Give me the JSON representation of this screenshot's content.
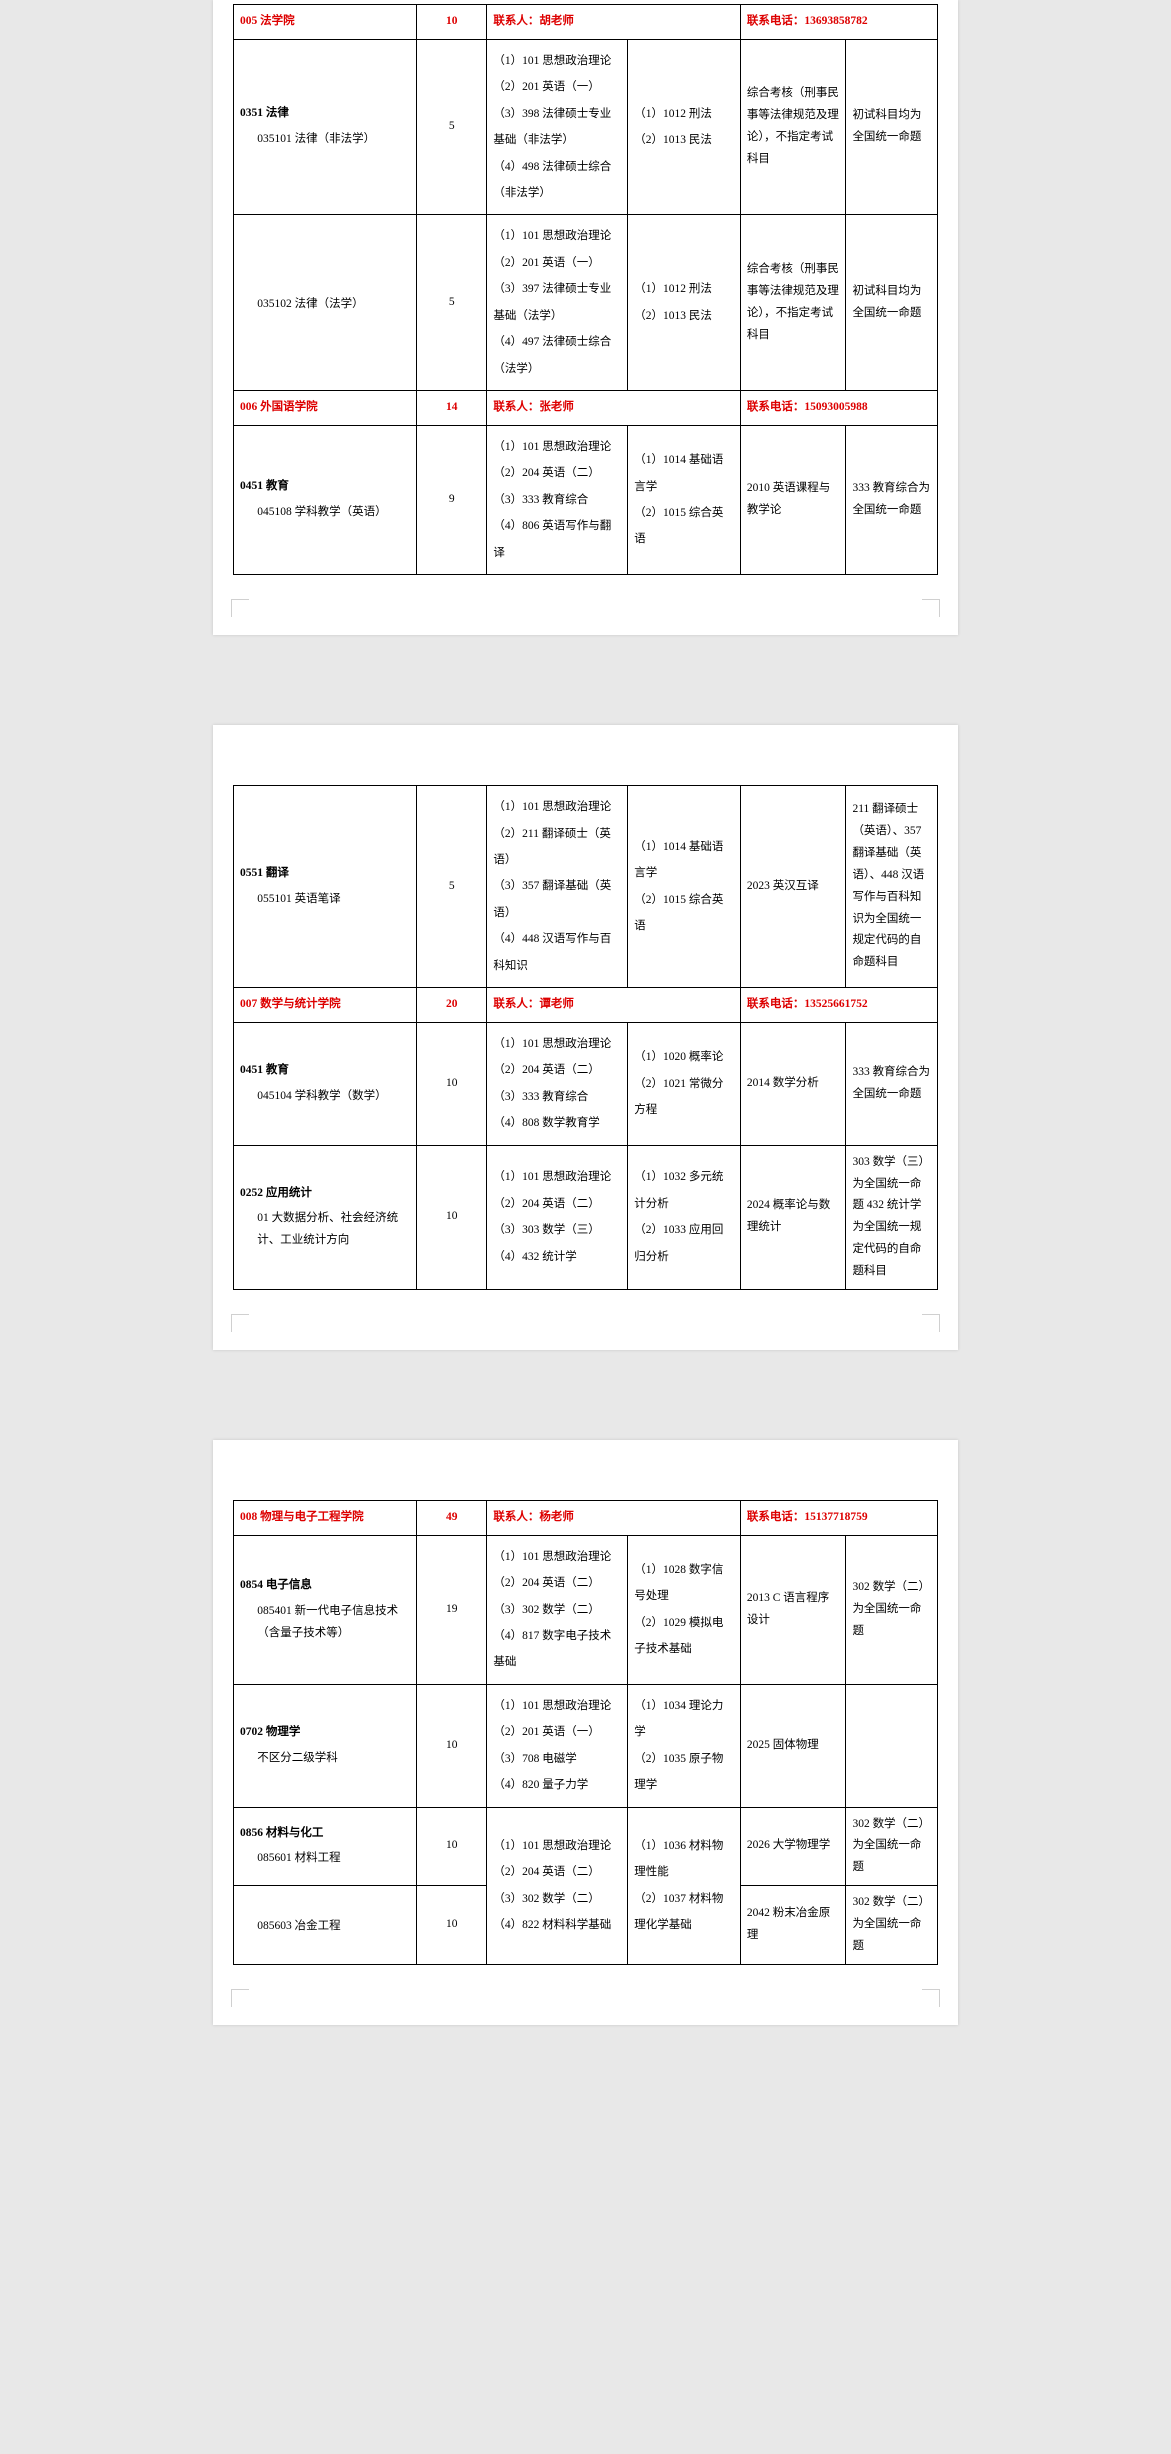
{
  "colWidths": [
    "26%",
    "10%",
    "20%",
    "16%",
    "15%",
    "13%"
  ],
  "deptLabels": {
    "contact": "联系人：",
    "phone": "联系电话："
  },
  "pages": [
    {
      "first": true,
      "rows": [
        {
          "type": "dept",
          "name": "005 法学院",
          "num": "10",
          "contact": "胡老师",
          "phone": "13693858782"
        },
        {
          "type": "data",
          "major": "<span class='maj-code'>0351  法律</span><span class='sub-line'>035101 法律（非法学）</span>",
          "num": "5",
          "c3": "（1）101 思想政治理论\n（2）201 英语（一）\n（3）398 法律硕士专业基础（非法学）\n（4）498 法律硕士综合（非法学）",
          "c4": "（1）1012 刑法\n（2）1013 民法",
          "c5": "综合考核（刑事民事等法律规范及理论），不指定考试科目",
          "c6": "初试科目均为全国统一命题"
        },
        {
          "type": "data",
          "major": "<span class='sub-line'>035102 法律（法学）</span>",
          "num": "5",
          "c3": "（1）101 思想政治理论\n（2）201 英语（一）\n（3）397 法律硕士专业基础（法学）\n（4）497 法律硕士综合（法学）",
          "c4": "（1）1012 刑法\n（2）1013 民法",
          "c5": "综合考核（刑事民事等法律规范及理论），不指定考试科目",
          "c6": "初试科目均为全国统一命题"
        },
        {
          "type": "dept",
          "name": "006 外国语学院",
          "num": "14",
          "contact": "张老师",
          "phone": "15093005988"
        },
        {
          "type": "data",
          "major": "<span class='maj-code'>0451  教育</span><span class='sub-line'>045108 学科教学（英语）</span>",
          "num": "9",
          "c3": "（1）101 思想政治理论\n（2）204 英语（二）\n（3）333 教育综合\n（4）806 英语写作与翻译",
          "c4": "（1）1014 基础语言学\n（2）1015 综合英语",
          "c5": "2010 英语课程与教学论",
          "c6": "333 教育综合为全国统一命题"
        }
      ]
    },
    {
      "rows": [
        {
          "type": "data",
          "major": "<span class='maj-code'>0551  翻译</span><span class='sub-line'>055101 英语笔译</span>",
          "num": "5",
          "c3": "（1）101 思想政治理论\n（2）211 翻译硕士（英语）\n（3）357 翻译基础（英语）\n（4）448 汉语写作与百科知识",
          "c4": "（1）1014 基础语言学\n（2）1015 综合英语",
          "c5": "2023 英汉互译",
          "c6": "211 翻译硕士（英语）、357 翻译基础（英语）、448 汉语写作与百科知识为全国统一规定代码的自命题科目"
        },
        {
          "type": "dept",
          "name": "007 数学与统计学院",
          "num": "20",
          "contact": "谭老师",
          "phone": "13525661752"
        },
        {
          "type": "data",
          "major": "<span class='maj-code'>0451  教育</span><span class='sub-line'>045104 学科教学（数学）</span>",
          "num": "10",
          "c3": "（1）101 思想政治理论\n（2）204 英语（二）\n（3）333 教育综合\n（4）808 数学教育学",
          "c4": "（1）1020 概率论\n（2）1021 常微分方程",
          "c5": "2014 数学分析",
          "c6": "333 教育综合为全国统一命题"
        },
        {
          "type": "data",
          "major": "<span class='maj-code'>0252  应用统计</span><span class='sub-line'>01 大数据分析、社会经济统计、工业统计方向</span>",
          "num": "10",
          "c3": "（1）101 思想政治理论\n（2）204 英语（二）\n（3）303 数学（三）\n（4）432 统计学",
          "c4": "（1）1032 多元统计分析\n（2）1033 应用回归分析",
          "c5": "2024 概率论与数理统计",
          "c6": "303 数学（三）为全国统一命题 432 统计学为全国统一规定代码的自命题科目"
        }
      ]
    },
    {
      "rows": [
        {
          "type": "dept",
          "name": "008 物理与电子工程学院",
          "num": "49",
          "contact": "杨老师",
          "phone": "15137718759"
        },
        {
          "type": "data",
          "major": "<span class='maj-code'>0854  电子信息</span><span class='sub-line'>085401 新一代电子信息技术（含量子技术等）</span>",
          "num": "19",
          "c3": "（1）101 思想政治理论\n（2）204 英语（二）\n（3）302 数学（二）\n（4）817 数字电子技术基础",
          "c4": "（1）1028 数字信号处理\n（2）1029 模拟电子技术基础",
          "c5": "2013 C 语言程序设计",
          "c6": "302 数学（二）为全国统一命题"
        },
        {
          "type": "data",
          "major": "<span class='maj-code'>0702 物理学</span><span class='sub-line'>不区分二级学科</span>",
          "num": "10",
          "c3": "（1）101 思想政治理论\n（2）201 英语（一）\n（3）708 电磁学\n（4）820 量子力学",
          "c4": "（1）1034 理论力学\n（2）1035 原子物理学",
          "c5": "2025 固体物理",
          "c6": ""
        },
        {
          "type": "data",
          "major": "<span class='maj-code'>0856 材料与化工</span><span class='sub-line'>085601 材料工程</span>",
          "num": "10",
          "c3": "（1）101 思想政治理论\n（2）204 英语（二）\n（3）302 数学（二）\n（4）822 材料科学基础",
          "c4": "（1）1036 材料物理性能\n（2）1037 材料物理化学基础",
          "c5": "2026 大学物理学",
          "c6": "302 数学（二）为全国统一命题",
          "rowspan34": 2
        },
        {
          "type": "data",
          "major": "<span class='sub-line'>085603 冶金工程</span>",
          "num": "10",
          "skip34": true,
          "c5": "2042 粉末冶金原理",
          "c6": "302 数学（二）为全国统一命题"
        }
      ]
    }
  ]
}
